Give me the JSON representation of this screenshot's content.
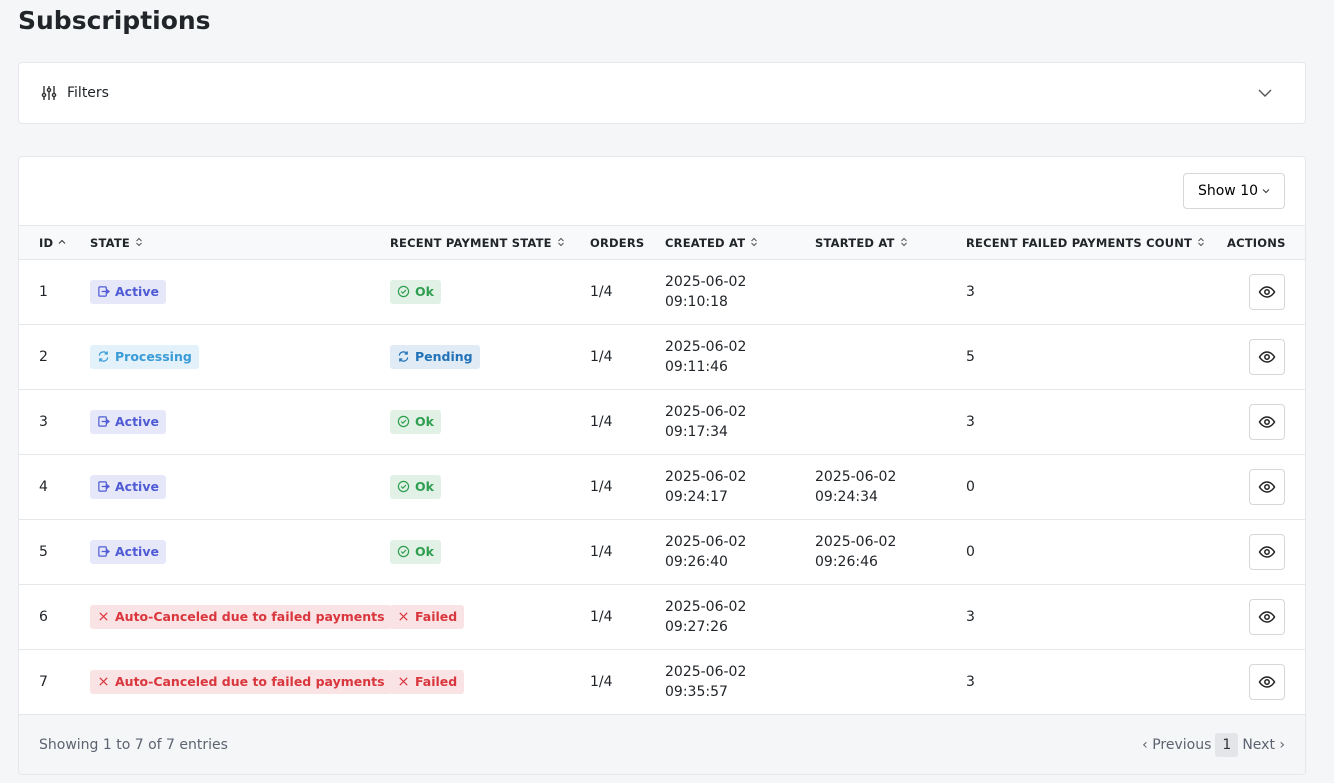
{
  "header": {
    "title": "Subscriptions"
  },
  "filters": {
    "label": "Filters"
  },
  "toolbar": {
    "page_size": "Show 10"
  },
  "table": {
    "columns": [
      "ID",
      "STATE",
      "RECENT PAYMENT STATE",
      "ORDERS",
      "CREATED AT",
      "STARTED AT",
      "RECENT FAILED PAYMENTS COUNT",
      "ACTIONS"
    ],
    "rows": [
      {
        "id": "1",
        "state": {
          "text": "Active",
          "color": "#4f5bd5",
          "icon": "enter"
        },
        "payment": {
          "text": "Ok",
          "color": "#2e9e4f",
          "icon": "check"
        },
        "orders": "1/4",
        "created": {
          "date": "2025-06-02",
          "time": "09:10:18"
        },
        "started": null,
        "failed_count": "3"
      },
      {
        "id": "2",
        "state": {
          "text": "Processing",
          "color": "#3a9bd8",
          "icon": "sync"
        },
        "payment": {
          "text": "Pending",
          "color": "#2272b8",
          "icon": "sync"
        },
        "orders": "1/4",
        "created": {
          "date": "2025-06-02",
          "time": "09:11:46"
        },
        "started": null,
        "failed_count": "5"
      },
      {
        "id": "3",
        "state": {
          "text": "Active",
          "color": "#4f5bd5",
          "icon": "enter"
        },
        "payment": {
          "text": "Ok",
          "color": "#2e9e4f",
          "icon": "check"
        },
        "orders": "1/4",
        "created": {
          "date": "2025-06-02",
          "time": "09:17:34"
        },
        "started": null,
        "failed_count": "3"
      },
      {
        "id": "4",
        "state": {
          "text": "Active",
          "color": "#4f5bd5",
          "icon": "enter"
        },
        "payment": {
          "text": "Ok",
          "color": "#2e9e4f",
          "icon": "check"
        },
        "orders": "1/4",
        "created": {
          "date": "2025-06-02",
          "time": "09:24:17"
        },
        "started": {
          "date": "2025-06-02",
          "time": "09:24:34"
        },
        "failed_count": "0"
      },
      {
        "id": "5",
        "state": {
          "text": "Active",
          "color": "#4f5bd5",
          "icon": "enter"
        },
        "payment": {
          "text": "Ok",
          "color": "#2e9e4f",
          "icon": "check"
        },
        "orders": "1/4",
        "created": {
          "date": "2025-06-02",
          "time": "09:26:40"
        },
        "started": {
          "date": "2025-06-02",
          "time": "09:26:46"
        },
        "failed_count": "0"
      },
      {
        "id": "6",
        "state": {
          "text": "Auto-Canceled due to failed payments",
          "color": "#d9363e",
          "icon": "x"
        },
        "payment": {
          "text": "Failed",
          "color": "#d9363e",
          "icon": "x"
        },
        "orders": "1/4",
        "created": {
          "date": "2025-06-02",
          "time": "09:27:26"
        },
        "started": null,
        "failed_count": "3"
      },
      {
        "id": "7",
        "state": {
          "text": "Auto-Canceled due to failed payments",
          "color": "#d9363e",
          "icon": "x"
        },
        "payment": {
          "text": "Failed",
          "color": "#d9363e",
          "icon": "x"
        },
        "orders": "1/4",
        "created": {
          "date": "2025-06-02",
          "time": "09:35:57"
        },
        "started": null,
        "failed_count": "3"
      }
    ],
    "sortable": [
      true,
      true,
      true,
      false,
      true,
      true,
      true,
      false
    ],
    "sorted": 0
  },
  "footer": {
    "summary": "Showing 1 to 7 of 7 entries",
    "previous": "Previous",
    "page": "1",
    "next": "Next"
  }
}
